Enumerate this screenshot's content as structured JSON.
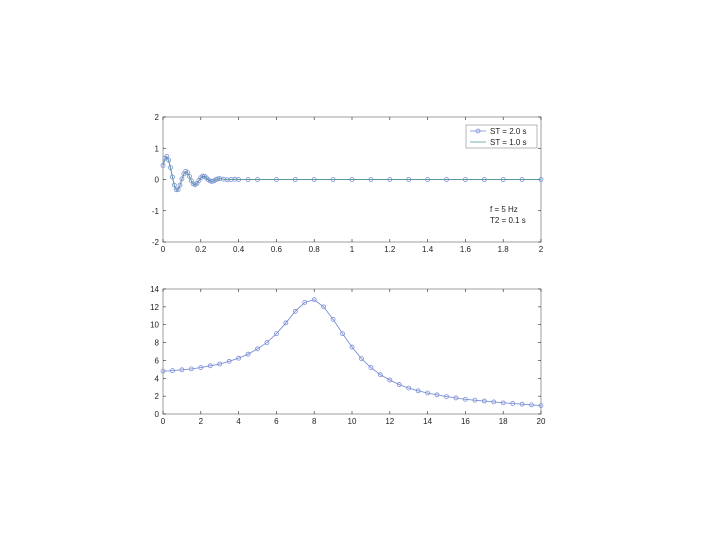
{
  "colors": {
    "series_1": "#7b8fd6",
    "series_2": "#5a9a9e",
    "axis": "#222222",
    "frame": "#888888"
  },
  "chart_data": [
    {
      "type": "line",
      "xlim": [
        0,
        2
      ],
      "ylim": [
        -2,
        2
      ],
      "x_ticks": [
        "0",
        "0.2",
        "0.4",
        "0.6",
        "0.8",
        "1",
        "1.2",
        "1.4",
        "1.6",
        "1.8",
        "2"
      ],
      "y_ticks": [
        "-2",
        "-1",
        "0",
        "1",
        "2"
      ],
      "grid": false,
      "legend_position": "top-right",
      "marker": "circle",
      "annotations": [
        "f = 5 Hz",
        "T2 = 0.1 s"
      ],
      "series": [
        {
          "name": "ST = 2.0 s",
          "x": [
            0,
            0.01,
            0.02,
            0.03,
            0.04,
            0.05,
            0.06,
            0.07,
            0.08,
            0.09,
            0.1,
            0.11,
            0.12,
            0.13,
            0.14,
            0.15,
            0.16,
            0.17,
            0.18,
            0.19,
            0.2,
            0.21,
            0.22,
            0.23,
            0.24,
            0.25,
            0.26,
            0.27,
            0.28,
            0.29,
            0.3,
            0.32,
            0.34,
            0.36,
            0.38,
            0.4,
            0.45,
            0.5,
            0.6,
            0.7,
            0.8,
            0.9,
            1.0,
            1.1,
            1.2,
            1.3,
            1.4,
            1.5,
            1.6,
            1.7,
            1.8,
            1.9,
            2.0
          ],
          "y": [
            0.45,
            0.68,
            0.74,
            0.62,
            0.38,
            0.08,
            -0.18,
            -0.33,
            -0.32,
            -0.18,
            0.02,
            0.18,
            0.26,
            0.22,
            0.1,
            -0.04,
            -0.14,
            -0.17,
            -0.12,
            -0.03,
            0.06,
            0.11,
            0.1,
            0.05,
            -0.01,
            -0.05,
            -0.06,
            -0.04,
            0.0,
            0.02,
            0.03,
            0.01,
            -0.01,
            0.0,
            0.01,
            0.0,
            0.0,
            0.0,
            0.0,
            0.0,
            0.0,
            0.0,
            0.0,
            0.0,
            0.0,
            0.0,
            0.0,
            0.0,
            0.0,
            0.0,
            0.0,
            0.0,
            0.0
          ]
        },
        {
          "name": "ST = 1.0 s",
          "x": [
            0,
            0.01,
            0.02,
            0.03,
            0.04,
            0.05,
            0.06,
            0.07,
            0.08,
            0.09,
            0.1,
            0.11,
            0.12,
            0.13,
            0.14,
            0.15,
            0.16,
            0.17,
            0.18,
            0.19,
            0.2,
            0.21,
            0.22,
            0.23,
            0.24,
            0.25,
            0.26,
            0.27,
            0.28,
            0.29,
            0.3,
            0.32,
            0.34,
            0.36,
            0.38,
            0.4,
            0.45,
            0.5,
            0.6,
            0.7,
            0.8,
            0.9,
            1.0,
            1.1,
            1.2,
            1.3,
            1.4,
            1.5,
            1.6,
            1.7,
            1.8,
            1.9,
            2.0
          ],
          "y": [
            0.42,
            0.65,
            0.72,
            0.6,
            0.36,
            0.07,
            -0.19,
            -0.34,
            -0.33,
            -0.19,
            0.01,
            0.17,
            0.25,
            0.21,
            0.09,
            -0.05,
            -0.15,
            -0.18,
            -0.13,
            -0.04,
            0.05,
            0.1,
            0.09,
            0.04,
            -0.02,
            -0.05,
            -0.06,
            -0.04,
            0.0,
            0.02,
            0.03,
            0.01,
            -0.01,
            0.0,
            0.01,
            0.0,
            0.0,
            0.0,
            0.0,
            0.0,
            0.0,
            0.0,
            0.0,
            0.0,
            0.0,
            0.0,
            0.0,
            0.0,
            0.0,
            0.0,
            0.0,
            0.0,
            0.0
          ]
        }
      ]
    },
    {
      "type": "line",
      "xlim": [
        0,
        20
      ],
      "ylim": [
        0,
        14
      ],
      "x_ticks": [
        "0",
        "2",
        "4",
        "6",
        "8",
        "10",
        "12",
        "14",
        "16",
        "18",
        "20"
      ],
      "y_ticks": [
        "0",
        "2",
        "4",
        "6",
        "8",
        "10",
        "12",
        "14"
      ],
      "grid": false,
      "marker": "circle",
      "series": [
        {
          "x": [
            0,
            0.5,
            1,
            1.5,
            2,
            2.5,
            3,
            3.5,
            4,
            4.5,
            5,
            5.5,
            6,
            6.5,
            7,
            7.5,
            8,
            8.5,
            9,
            9.5,
            10,
            10.5,
            11,
            11.5,
            12,
            12.5,
            13,
            13.5,
            14,
            14.5,
            15,
            15.5,
            16,
            16.5,
            17,
            17.5,
            18,
            18.5,
            19,
            19.5,
            20
          ],
          "y": [
            4.8,
            4.85,
            4.95,
            5.05,
            5.2,
            5.4,
            5.6,
            5.9,
            6.25,
            6.7,
            7.3,
            8.0,
            9.0,
            10.2,
            11.5,
            12.5,
            12.8,
            12.0,
            10.6,
            9.0,
            7.5,
            6.2,
            5.2,
            4.4,
            3.8,
            3.3,
            2.9,
            2.6,
            2.35,
            2.15,
            1.95,
            1.8,
            1.65,
            1.55,
            1.45,
            1.35,
            1.25,
            1.18,
            1.1,
            1.02,
            0.95
          ]
        }
      ]
    }
  ]
}
